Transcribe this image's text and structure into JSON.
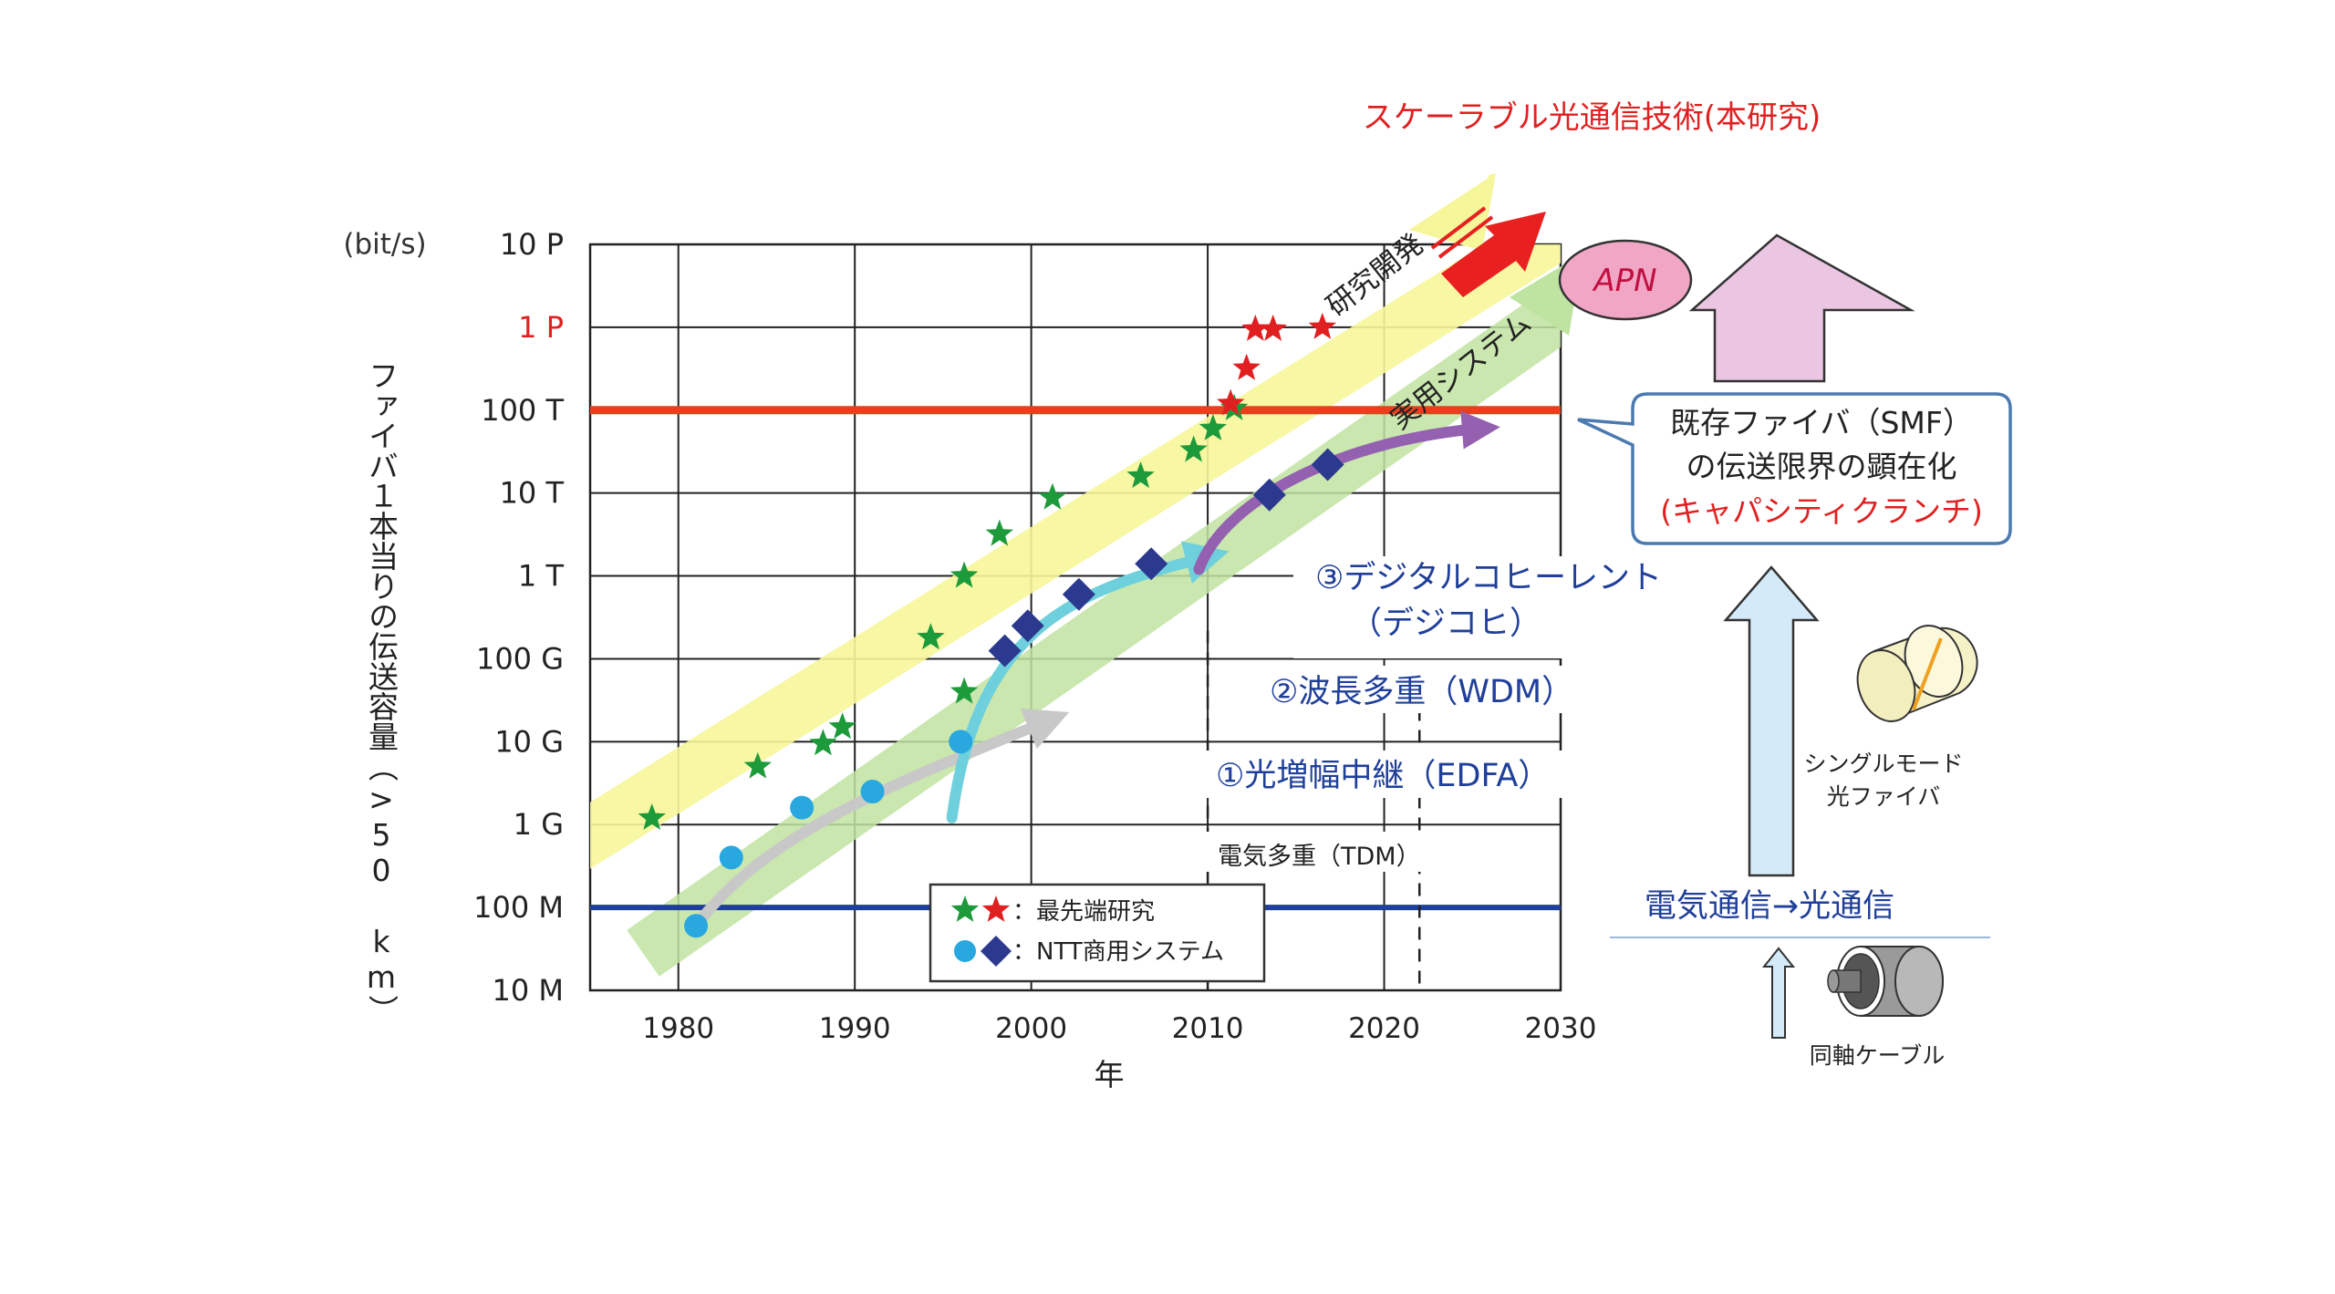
{
  "chart_data": {
    "type": "scatter",
    "title": "スケーラブル光通信技術(本研究)",
    "unit_label": "(bit/s)",
    "xlabel": "年",
    "ylabel": "ファイバ１本当りの伝送容量（>50 km）",
    "xlim": [
      1975,
      2030
    ],
    "ylim_log10": [
      7,
      16
    ],
    "x_ticks": [
      1980,
      1990,
      2000,
      2010,
      2020,
      2030
    ],
    "y_ticks": [
      {
        "value": 10000000.0,
        "label": "10  M",
        "color": "#222222"
      },
      {
        "value": 100000000.0,
        "label": "100  M",
        "color": "#222222"
      },
      {
        "value": 1000000000.0,
        "label": "1  G",
        "color": "#222222"
      },
      {
        "value": 10000000000.0,
        "label": "10  G",
        "color": "#222222"
      },
      {
        "value": 100000000000.0,
        "label": "100  G",
        "color": "#222222"
      },
      {
        "value": 1000000000000.0,
        "label": "1  T",
        "color": "#222222"
      },
      {
        "value": 10000000000000.0,
        "label": "10  T",
        "color": "#222222"
      },
      {
        "value": 100000000000000.0,
        "label": "100  T",
        "color": "#222222"
      },
      {
        "value": 1000000000000000.0,
        "label": "1  P",
        "color": "#e02020"
      },
      {
        "value": 1e+16,
        "label": "10  P",
        "color": "#222222"
      }
    ],
    "grid": true,
    "reference_lines": [
      {
        "value": 100000000000000.0,
        "color": "#e8401c"
      },
      {
        "value": 100000000.0,
        "color": "#1f3f9a"
      }
    ],
    "series": [
      {
        "name": "最先端研究",
        "marker": "star",
        "color": "#1d9a3a",
        "points": [
          [
            1978.5,
            1200000000.0
          ],
          [
            1984.5,
            5000000000.0
          ],
          [
            1988.2,
            9500000000.0
          ],
          [
            1989.3,
            15000000000.0
          ],
          [
            1994.3,
            180000000000.0
          ],
          [
            1996.2,
            40000000000.0
          ],
          [
            1996.2,
            1000000000000.0
          ],
          [
            1998.2,
            3200000000000.0
          ],
          [
            2001.2,
            8800000000000.0
          ],
          [
            2006.2,
            16000000000000.0
          ],
          [
            2009.2,
            33000000000000.0
          ],
          [
            2010.3,
            60000000000000.0
          ],
          [
            2011.5,
            105000000000000.0
          ]
        ]
      },
      {
        "name": "最先端研究",
        "marker": "star",
        "color": "#e02020",
        "points": [
          [
            2011.3,
            120000000000000.0
          ],
          [
            2012.2,
            320000000000000.0
          ],
          [
            2012.7,
            950000000000000.0
          ],
          [
            2013.7,
            950000000000000.0
          ],
          [
            2016.5,
            1000000000000000.0
          ]
        ]
      },
      {
        "name": "NTT商用システム",
        "marker": "circle",
        "color": "#29a8e0",
        "points": [
          [
            1981,
            60000000.0
          ],
          [
            1983,
            400000000.0
          ],
          [
            1987,
            1600000000.0
          ],
          [
            1991,
            2500000000.0
          ],
          [
            1996,
            10000000000.0
          ]
        ]
      },
      {
        "name": "NTT商用システム",
        "marker": "diamond",
        "color": "#2b3a8e",
        "points": [
          [
            1998.5,
            125000000000.0
          ],
          [
            1999.8,
            250000000000.0
          ],
          [
            2002.7,
            600000000000.0
          ],
          [
            2006.8,
            1400000000000.0
          ],
          [
            2013.5,
            9500000000000.0
          ],
          [
            2016.8,
            22000000000000.0
          ]
        ]
      }
    ],
    "legend": [
      {
        "text": "：最先端研究"
      },
      {
        "text": "：NTT商用システム"
      }
    ],
    "band_labels": [
      {
        "text": "研究開発",
        "color": "#222222"
      },
      {
        "text": "実用システム",
        "color": "#222222"
      }
    ],
    "annotations": [
      {
        "text": "③デジタルコヒーレント",
        "color": "#1f3f9a"
      },
      {
        "text": "（デジコヒ）",
        "color": "#1f3f9a"
      },
      {
        "text": "②波長多重（WDM）",
        "color": "#1f3f9a"
      },
      {
        "text": "①光増幅中継（EDFA）",
        "color": "#1f3f9a"
      },
      {
        "text": "電気多重（TDM）",
        "color": "#222222"
      }
    ]
  },
  "side_panel": {
    "apn_label": "APN",
    "callout_line1": "既存ファイバ（SMF）",
    "callout_line2": "の伝送限界の顕在化",
    "callout_line3": "(キャパシティクランチ)",
    "evolution_label": "電気通信→光通信",
    "smf_label_line1": "シングルモード",
    "smf_label_line2": "光ファイバ",
    "coax_label": "同軸ケーブル"
  }
}
